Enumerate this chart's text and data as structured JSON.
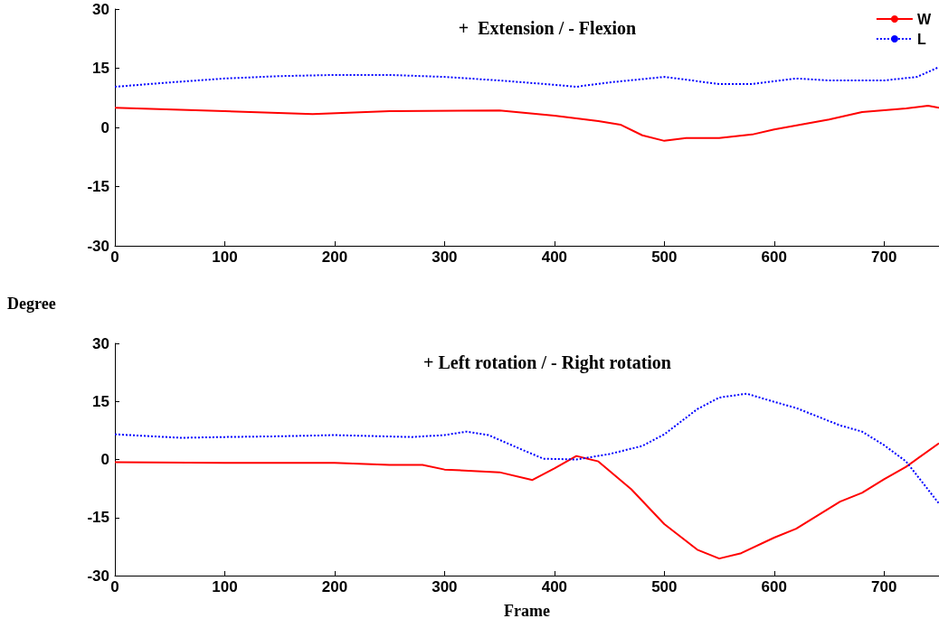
{
  "chart_data": [
    {
      "type": "line",
      "title": "+  Extension / - Flexion",
      "ylabel": "Degree",
      "xlim": [
        0,
        750
      ],
      "xticks": [
        0,
        100,
        200,
        300,
        400,
        500,
        600,
        700
      ],
      "ylim": [
        -30,
        30
      ],
      "yticks": [
        -30,
        -15,
        0,
        15,
        30
      ],
      "grid": false,
      "legend": "top right",
      "marker": "none",
      "series": [
        {
          "name": "W",
          "color": "#ff0000",
          "line_style": "solid",
          "x": [
            0,
            100,
            180,
            250,
            350,
            400,
            440,
            460,
            480,
            500,
            520,
            550,
            580,
            600,
            650,
            680,
            720,
            740,
            750
          ],
          "values": [
            5.0,
            4.1,
            3.4,
            4.1,
            4.3,
            3.0,
            1.6,
            0.7,
            -2,
            -3.4,
            -2.7,
            -2.7,
            -1.8,
            -0.5,
            2,
            3.9,
            4.8,
            5.5,
            5
          ]
        },
        {
          "name": "L",
          "color": "#0000ff",
          "line_style": "dotted",
          "x": [
            0,
            50,
            100,
            150,
            200,
            250,
            300,
            350,
            400,
            420,
            450,
            500,
            550,
            580,
            620,
            650,
            700,
            730,
            750
          ],
          "values": [
            10.3,
            11.4,
            12.4,
            13,
            13.3,
            13.3,
            12.8,
            11.9,
            10.8,
            10.3,
            11.4,
            12.8,
            11,
            11,
            12.4,
            11.9,
            11.9,
            12.8,
            15.3
          ]
        }
      ]
    },
    {
      "type": "line",
      "title": "+ Left rotation / - Right rotation",
      "xlabel": "Frame",
      "xlim": [
        0,
        750
      ],
      "xticks": [
        0,
        100,
        200,
        300,
        400,
        500,
        600,
        700
      ],
      "ylim": [
        -30,
        30
      ],
      "yticks": [
        -30,
        -15,
        0,
        15,
        30
      ],
      "grid": false,
      "legend": false,
      "marker": "none",
      "series": [
        {
          "color": "#ff0000",
          "line_style": "solid",
          "x": [
            0,
            100,
            200,
            250,
            280,
            300,
            350,
            380,
            400,
            420,
            440,
            470,
            500,
            530,
            550,
            570,
            600,
            620,
            660,
            680,
            700,
            720,
            750
          ],
          "values": [
            -0.7,
            -0.9,
            -0.9,
            -1.4,
            -1.4,
            -2.6,
            -3.3,
            -5.3,
            -2.3,
            0.9,
            -0.5,
            -7.7,
            -16.7,
            -23.3,
            -25.6,
            -24.2,
            -20.2,
            -17.9,
            -10.9,
            -8.6,
            -5.1,
            -1.9,
            4.2
          ]
        },
        {
          "color": "#0000ff",
          "line_style": "dotted",
          "x": [
            0,
            60,
            100,
            150,
            200,
            270,
            300,
            320,
            340,
            370,
            390,
            420,
            450,
            480,
            500,
            530,
            550,
            575,
            600,
            620,
            660,
            680,
            700,
            720,
            750
          ],
          "values": [
            6.5,
            5.6,
            5.8,
            6,
            6.3,
            5.8,
            6.3,
            7.2,
            6.3,
            2.6,
            0.2,
            0,
            1.4,
            3.5,
            6.5,
            13,
            16,
            17,
            14.9,
            13.3,
            8.8,
            7.2,
            3.7,
            -0.5,
            -11.4
          ]
        }
      ]
    }
  ]
}
